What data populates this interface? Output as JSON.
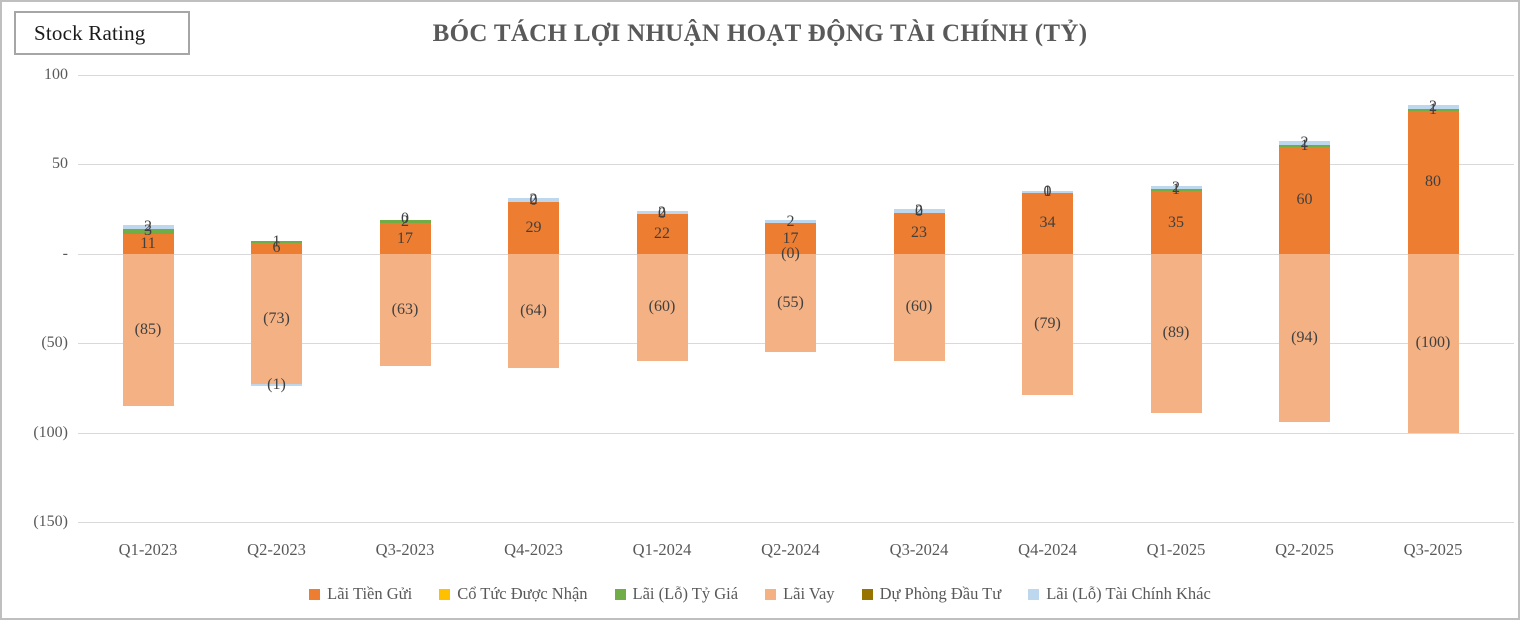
{
  "header": {
    "badge": "Stock Rating",
    "title": "BÓC TÁCH LỢI NHUẬN HOẠT ĐỘNG TÀI CHÍNH (TỶ)"
  },
  "chart_data": {
    "type": "bar",
    "stacked": true,
    "title": "BÓC TÁCH LỢI NHUẬN HOẠT ĐỘNG TÀI CHÍNH (TỶ)",
    "unit": "tỷ đồng",
    "legend_position": "bottom",
    "grid": true,
    "categories": [
      "Q1-2023",
      "Q2-2023",
      "Q3-2023",
      "Q4-2023",
      "Q1-2024",
      "Q2-2024",
      "Q3-2024",
      "Q4-2024",
      "Q1-2025",
      "Q2-2025",
      "Q3-2025"
    ],
    "y_axis": {
      "ticks": [
        "100",
        "50",
        "-",
        "(50)",
        "(100)",
        "(150)"
      ],
      "tick_values": [
        100,
        50,
        0,
        -50,
        -100,
        -150
      ],
      "ylim": [
        -150,
        100
      ]
    },
    "series": [
      {
        "name": "Lãi Tiền Gửi",
        "color": "#ED7D31",
        "values": [
          11,
          6,
          17,
          29,
          22,
          17,
          23,
          34,
          35,
          60,
          80
        ],
        "labels": [
          "11",
          "6",
          "17",
          "29",
          "22",
          "17",
          "23",
          "34",
          "35",
          "60",
          "80"
        ]
      },
      {
        "name": "Cổ Tức Được Nhận",
        "color": "#FFC000",
        "values": [
          0,
          0,
          0,
          0,
          0,
          0,
          0,
          0,
          0,
          0,
          0
        ],
        "labels": [
          "",
          "",
          "",
          "",
          "",
          "",
          "",
          "",
          "",
          "",
          ""
        ]
      },
      {
        "name": "Lãi (Lỗ) Tỷ Giá",
        "color": "#70AD47",
        "values": [
          3,
          1,
          2,
          0,
          0,
          0,
          0,
          0,
          1,
          1,
          1
        ],
        "labels": [
          "3",
          "1",
          "2",
          "0",
          "0",
          "(0)",
          "0",
          "0",
          "1",
          "1",
          "1"
        ]
      },
      {
        "name": "Lãi Vay",
        "color": "#F4B183",
        "values": [
          -85,
          -73,
          -63,
          -64,
          -60,
          -55,
          -60,
          -79,
          -89,
          -94,
          -100
        ],
        "labels": [
          "(85)",
          "(73)",
          "(63)",
          "(64)",
          "(60)",
          "(55)",
          "(60)",
          "(79)",
          "(89)",
          "(94)",
          "(100)"
        ]
      },
      {
        "name": "Dự Phòng Đầu Tư",
        "color": "#997300",
        "values": [
          0,
          0,
          0,
          0,
          0,
          0,
          0,
          0,
          0,
          0,
          0
        ],
        "labels": [
          "",
          "",
          "",
          "",
          "",
          "",
          "",
          "",
          "",
          "",
          ""
        ]
      },
      {
        "name": "Lãi (Lỗ) Tài Chính Khác",
        "color": "#BDD7EE",
        "values": [
          2,
          -1,
          0,
          2,
          2,
          2,
          2,
          1,
          2,
          2,
          2
        ],
        "labels": [
          "2",
          "(1)",
          "0",
          "2",
          "2",
          "2",
          "2",
          "1",
          "2",
          "2",
          "2"
        ]
      }
    ]
  }
}
